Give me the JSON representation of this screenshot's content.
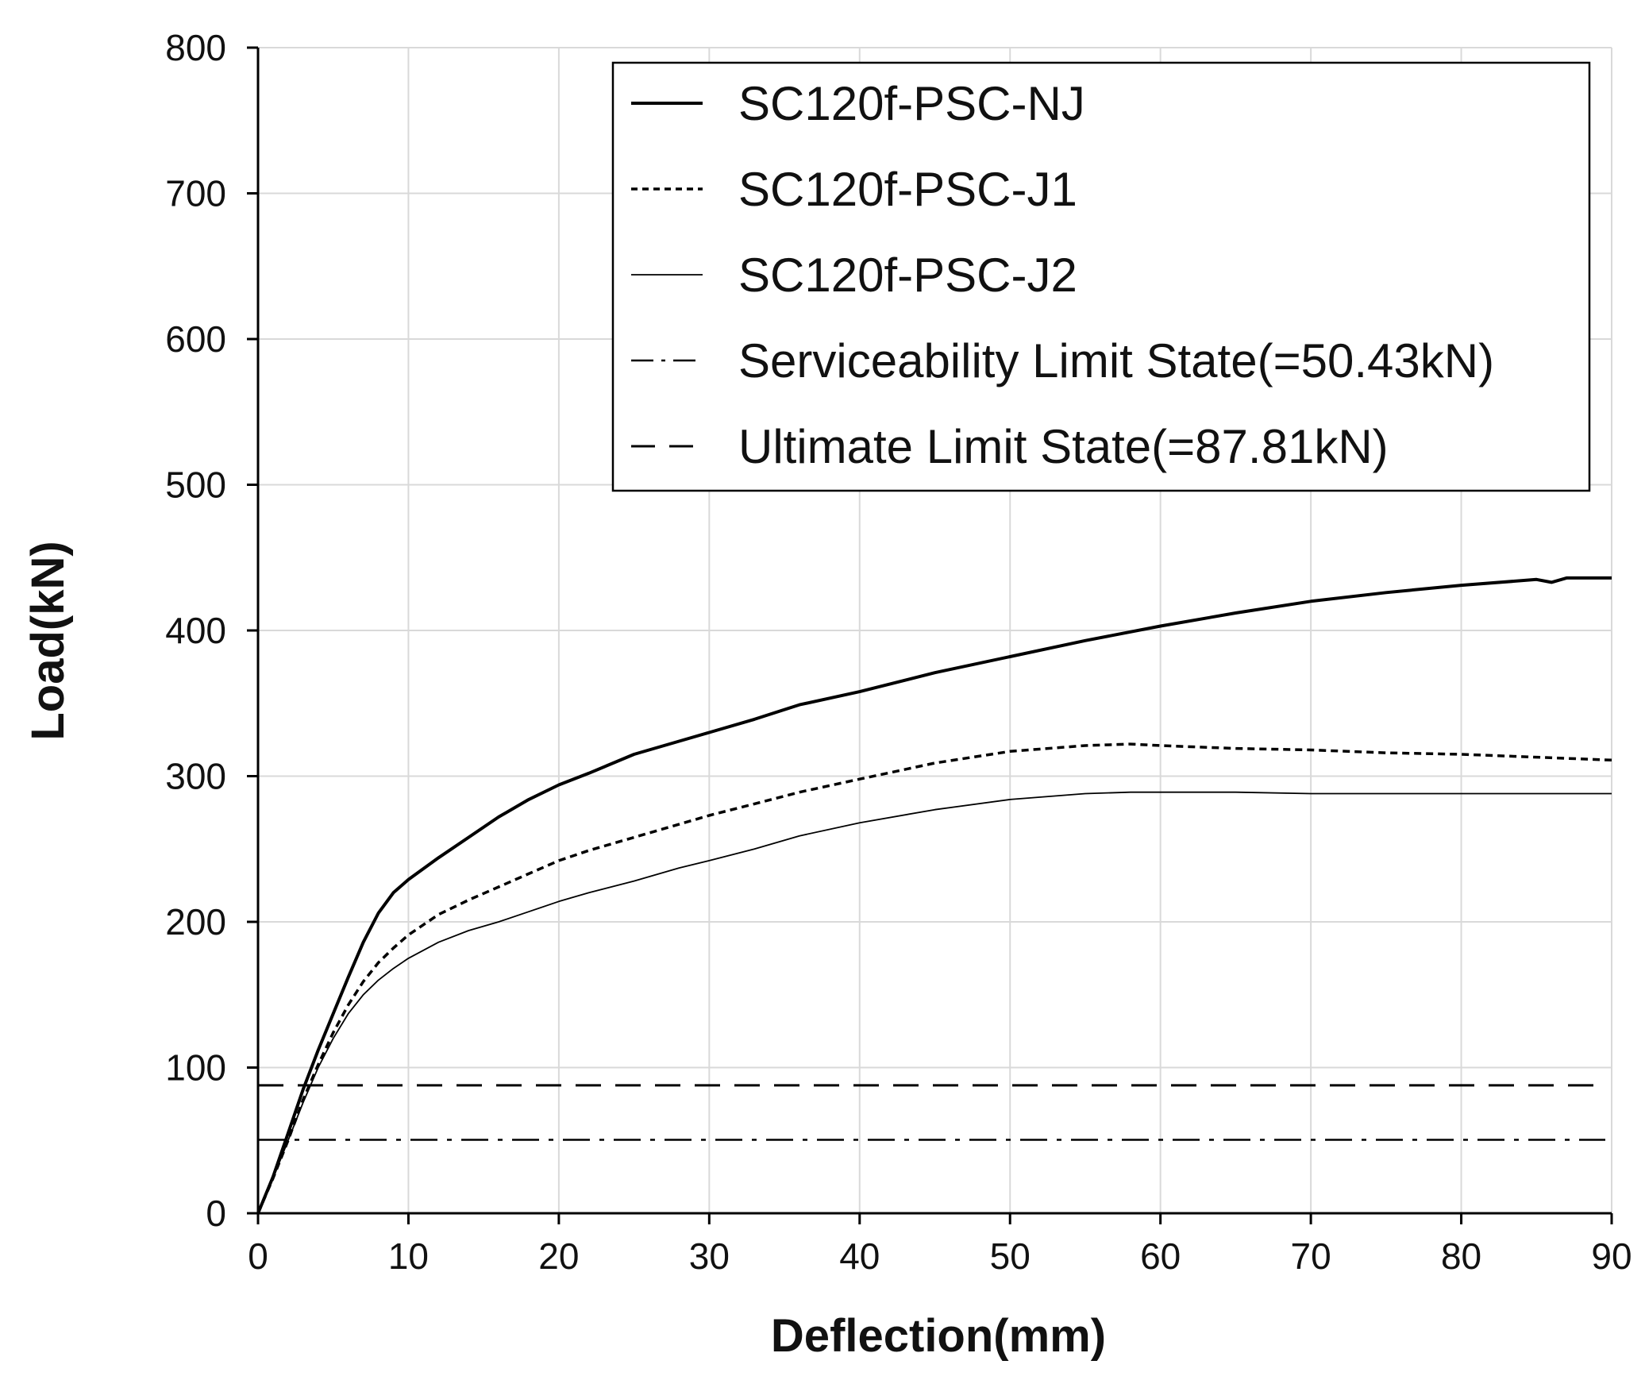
{
  "chart_data": {
    "type": "line",
    "title": "",
    "xlabel": "Deflection(mm)",
    "ylabel": "Load(kN)",
    "xlim": [
      0,
      90
    ],
    "ylim": [
      0,
      800
    ],
    "xticks": [
      0,
      10,
      20,
      30,
      40,
      50,
      60,
      70,
      80,
      90
    ],
    "yticks": [
      0,
      100,
      200,
      300,
      400,
      500,
      600,
      700,
      800
    ],
    "grid": true,
    "legend_position": "top-right",
    "series": [
      {
        "name": "SC120f-PSC-NJ",
        "style": "solid-thick",
        "color": "#000000",
        "x": [
          0,
          1,
          2,
          3,
          4,
          5,
          6,
          7,
          8,
          9,
          10,
          12,
          14,
          16,
          18,
          20,
          22,
          25,
          28,
          30,
          33,
          36,
          40,
          45,
          50,
          55,
          60,
          65,
          70,
          75,
          80,
          85,
          86,
          87,
          90
        ],
        "y": [
          0,
          25,
          55,
          85,
          112,
          137,
          162,
          186,
          206,
          220,
          229,
          244,
          258,
          272,
          284,
          294,
          302,
          315,
          324,
          330,
          339,
          349,
          358,
          371,
          382,
          393,
          403,
          412,
          420,
          426,
          431,
          435,
          433,
          436,
          436
        ]
      },
      {
        "name": "SC120f-PSC-J1",
        "style": "dotted",
        "color": "#000000",
        "x": [
          0,
          1,
          2,
          3,
          4,
          5,
          6,
          7,
          8,
          9,
          10,
          12,
          14,
          16,
          18,
          20,
          22,
          25,
          28,
          30,
          33,
          36,
          40,
          45,
          50,
          55,
          58,
          60,
          65,
          70,
          75,
          80,
          85,
          90
        ],
        "y": [
          0,
          24,
          50,
          78,
          102,
          124,
          143,
          159,
          172,
          182,
          191,
          205,
          215,
          224,
          233,
          242,
          249,
          258,
          267,
          273,
          281,
          289,
          298,
          309,
          317,
          321,
          322,
          321,
          319,
          318,
          316,
          315,
          313,
          311
        ]
      },
      {
        "name": "SC120f-PSC-J2",
        "style": "solid-thin",
        "color": "#000000",
        "x": [
          0,
          1,
          2,
          3,
          4,
          5,
          6,
          7,
          8,
          9,
          10,
          12,
          14,
          16,
          18,
          20,
          22,
          25,
          28,
          30,
          33,
          36,
          40,
          45,
          50,
          55,
          58,
          60,
          65,
          70,
          75,
          80,
          85,
          90
        ],
        "y": [
          0,
          24,
          50,
          76,
          100,
          120,
          137,
          150,
          160,
          168,
          175,
          186,
          194,
          200,
          207,
          214,
          220,
          228,
          237,
          242,
          250,
          259,
          268,
          277,
          284,
          288,
          289,
          289,
          289,
          288,
          288,
          288,
          288,
          288
        ]
      },
      {
        "name": "Serviceability Limit State(=50.43kN)",
        "style": "dash-dot",
        "color": "#000000",
        "x": [
          0,
          90
        ],
        "y": [
          50.43,
          50.43
        ]
      },
      {
        "name": "Ultimate Limit State(=87.81kN)",
        "style": "dashed",
        "color": "#000000",
        "x": [
          0,
          90
        ],
        "y": [
          87.81,
          87.81
        ]
      }
    ]
  }
}
